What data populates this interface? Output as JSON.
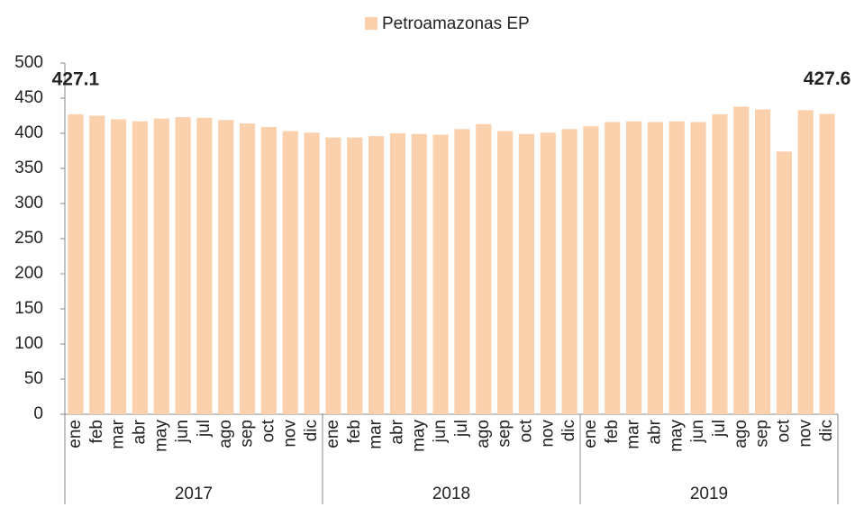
{
  "chart_data": {
    "type": "bar",
    "series": [
      {
        "name": "Petroamazonas EP",
        "color": "#fbd0ad",
        "values": [
          427.1,
          425,
          420,
          417,
          421,
          423,
          422,
          419,
          414,
          409,
          403,
          401,
          394,
          394,
          396,
          400,
          399,
          398,
          406,
          413,
          403,
          399,
          401,
          406,
          410,
          416,
          417,
          416,
          417,
          416,
          427,
          438,
          434,
          374,
          433,
          427.6
        ],
        "value_labels": [
          "427.1",
          null,
          null,
          null,
          null,
          null,
          null,
          null,
          null,
          null,
          null,
          null,
          null,
          null,
          null,
          null,
          null,
          null,
          null,
          null,
          null,
          null,
          null,
          null,
          null,
          null,
          null,
          null,
          null,
          null,
          null,
          null,
          null,
          null,
          null,
          "427.6"
        ]
      }
    ],
    "categories": [
      "ene",
      "feb",
      "mar",
      "abr",
      "may",
      "jun",
      "jul",
      "ago",
      "sep",
      "oct",
      "nov",
      "dic",
      "ene",
      "feb",
      "mar",
      "abr",
      "may",
      "jun",
      "jul",
      "ago",
      "sep",
      "oct",
      "nov",
      "dic",
      "ene",
      "feb",
      "mar",
      "abr",
      "may",
      "jun",
      "jul",
      "ago",
      "sep",
      "oct",
      "nov",
      "dic"
    ],
    "x_groups": [
      "2017",
      "2018",
      "2019"
    ],
    "ylim": [
      0,
      500
    ],
    "yticks": [
      0,
      50,
      100,
      150,
      200,
      250,
      300,
      350,
      400,
      450,
      500
    ],
    "legend": "top"
  }
}
